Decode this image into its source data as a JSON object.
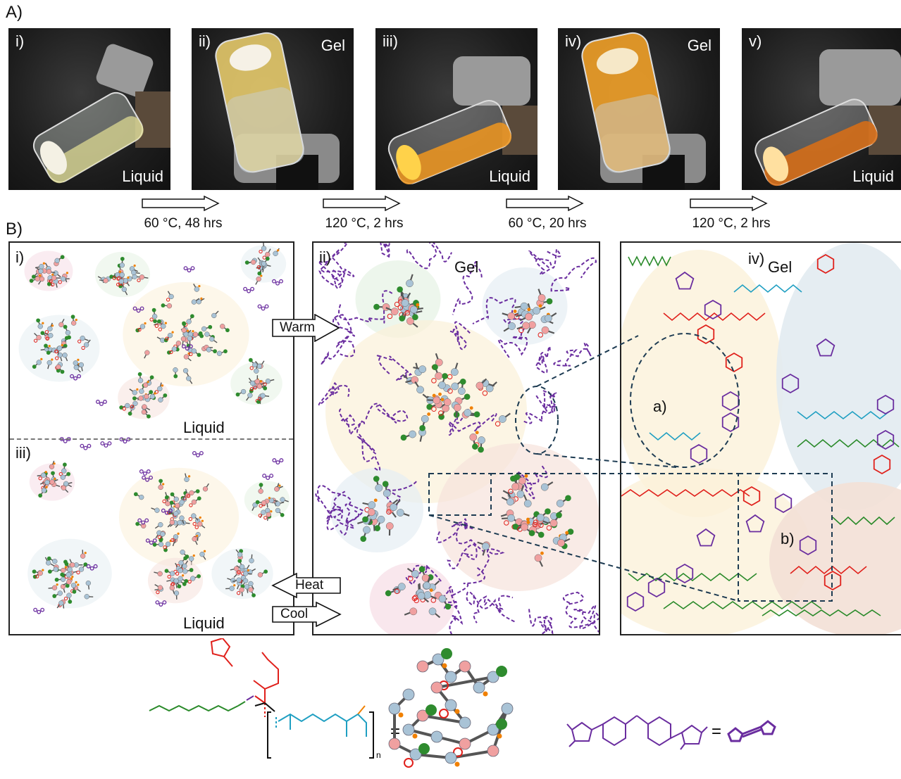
{
  "section_a": {
    "label": "A)",
    "photos": [
      {
        "num": "i)",
        "state": "Liquid"
      },
      {
        "num": "ii)",
        "state": "Gel"
      },
      {
        "num": "iii)",
        "state": "Liquid"
      },
      {
        "num": "iv)",
        "state": "Gel"
      },
      {
        "num": "v)",
        "state": "Liquid"
      }
    ],
    "steps": [
      "60 °C, 48 hrs",
      "120 °C, 2 hrs",
      "60 °C, 20 hrs",
      "120 °C, 2 hrs"
    ]
  },
  "section_b": {
    "label": "B)",
    "panel_i": {
      "num": "i)",
      "state": "Liquid"
    },
    "panel_iii": {
      "num": "iii)",
      "state": "Liquid"
    },
    "panel_ii": {
      "num": "ii)",
      "state": "Gel"
    },
    "panel_iv": {
      "num": "iv)",
      "state": "Gel"
    },
    "arrows": {
      "warm": "Warm",
      "heat": "Heat",
      "cool": "Cool"
    },
    "callouts": {
      "a": "a)",
      "b": "b)"
    }
  },
  "legend": {
    "subscript_n": "n",
    "equals": "="
  },
  "colors": {
    "furan": "#e0201b",
    "maleimide": "#6a2d9f",
    "backbone": "#1f9fc2",
    "alkyl": "#2a8a2a",
    "node": "#a9c3d6",
    "furan_node": "#f0a0a0",
    "end_group": "#2e8b2e",
    "accent_h": "#f08000"
  }
}
